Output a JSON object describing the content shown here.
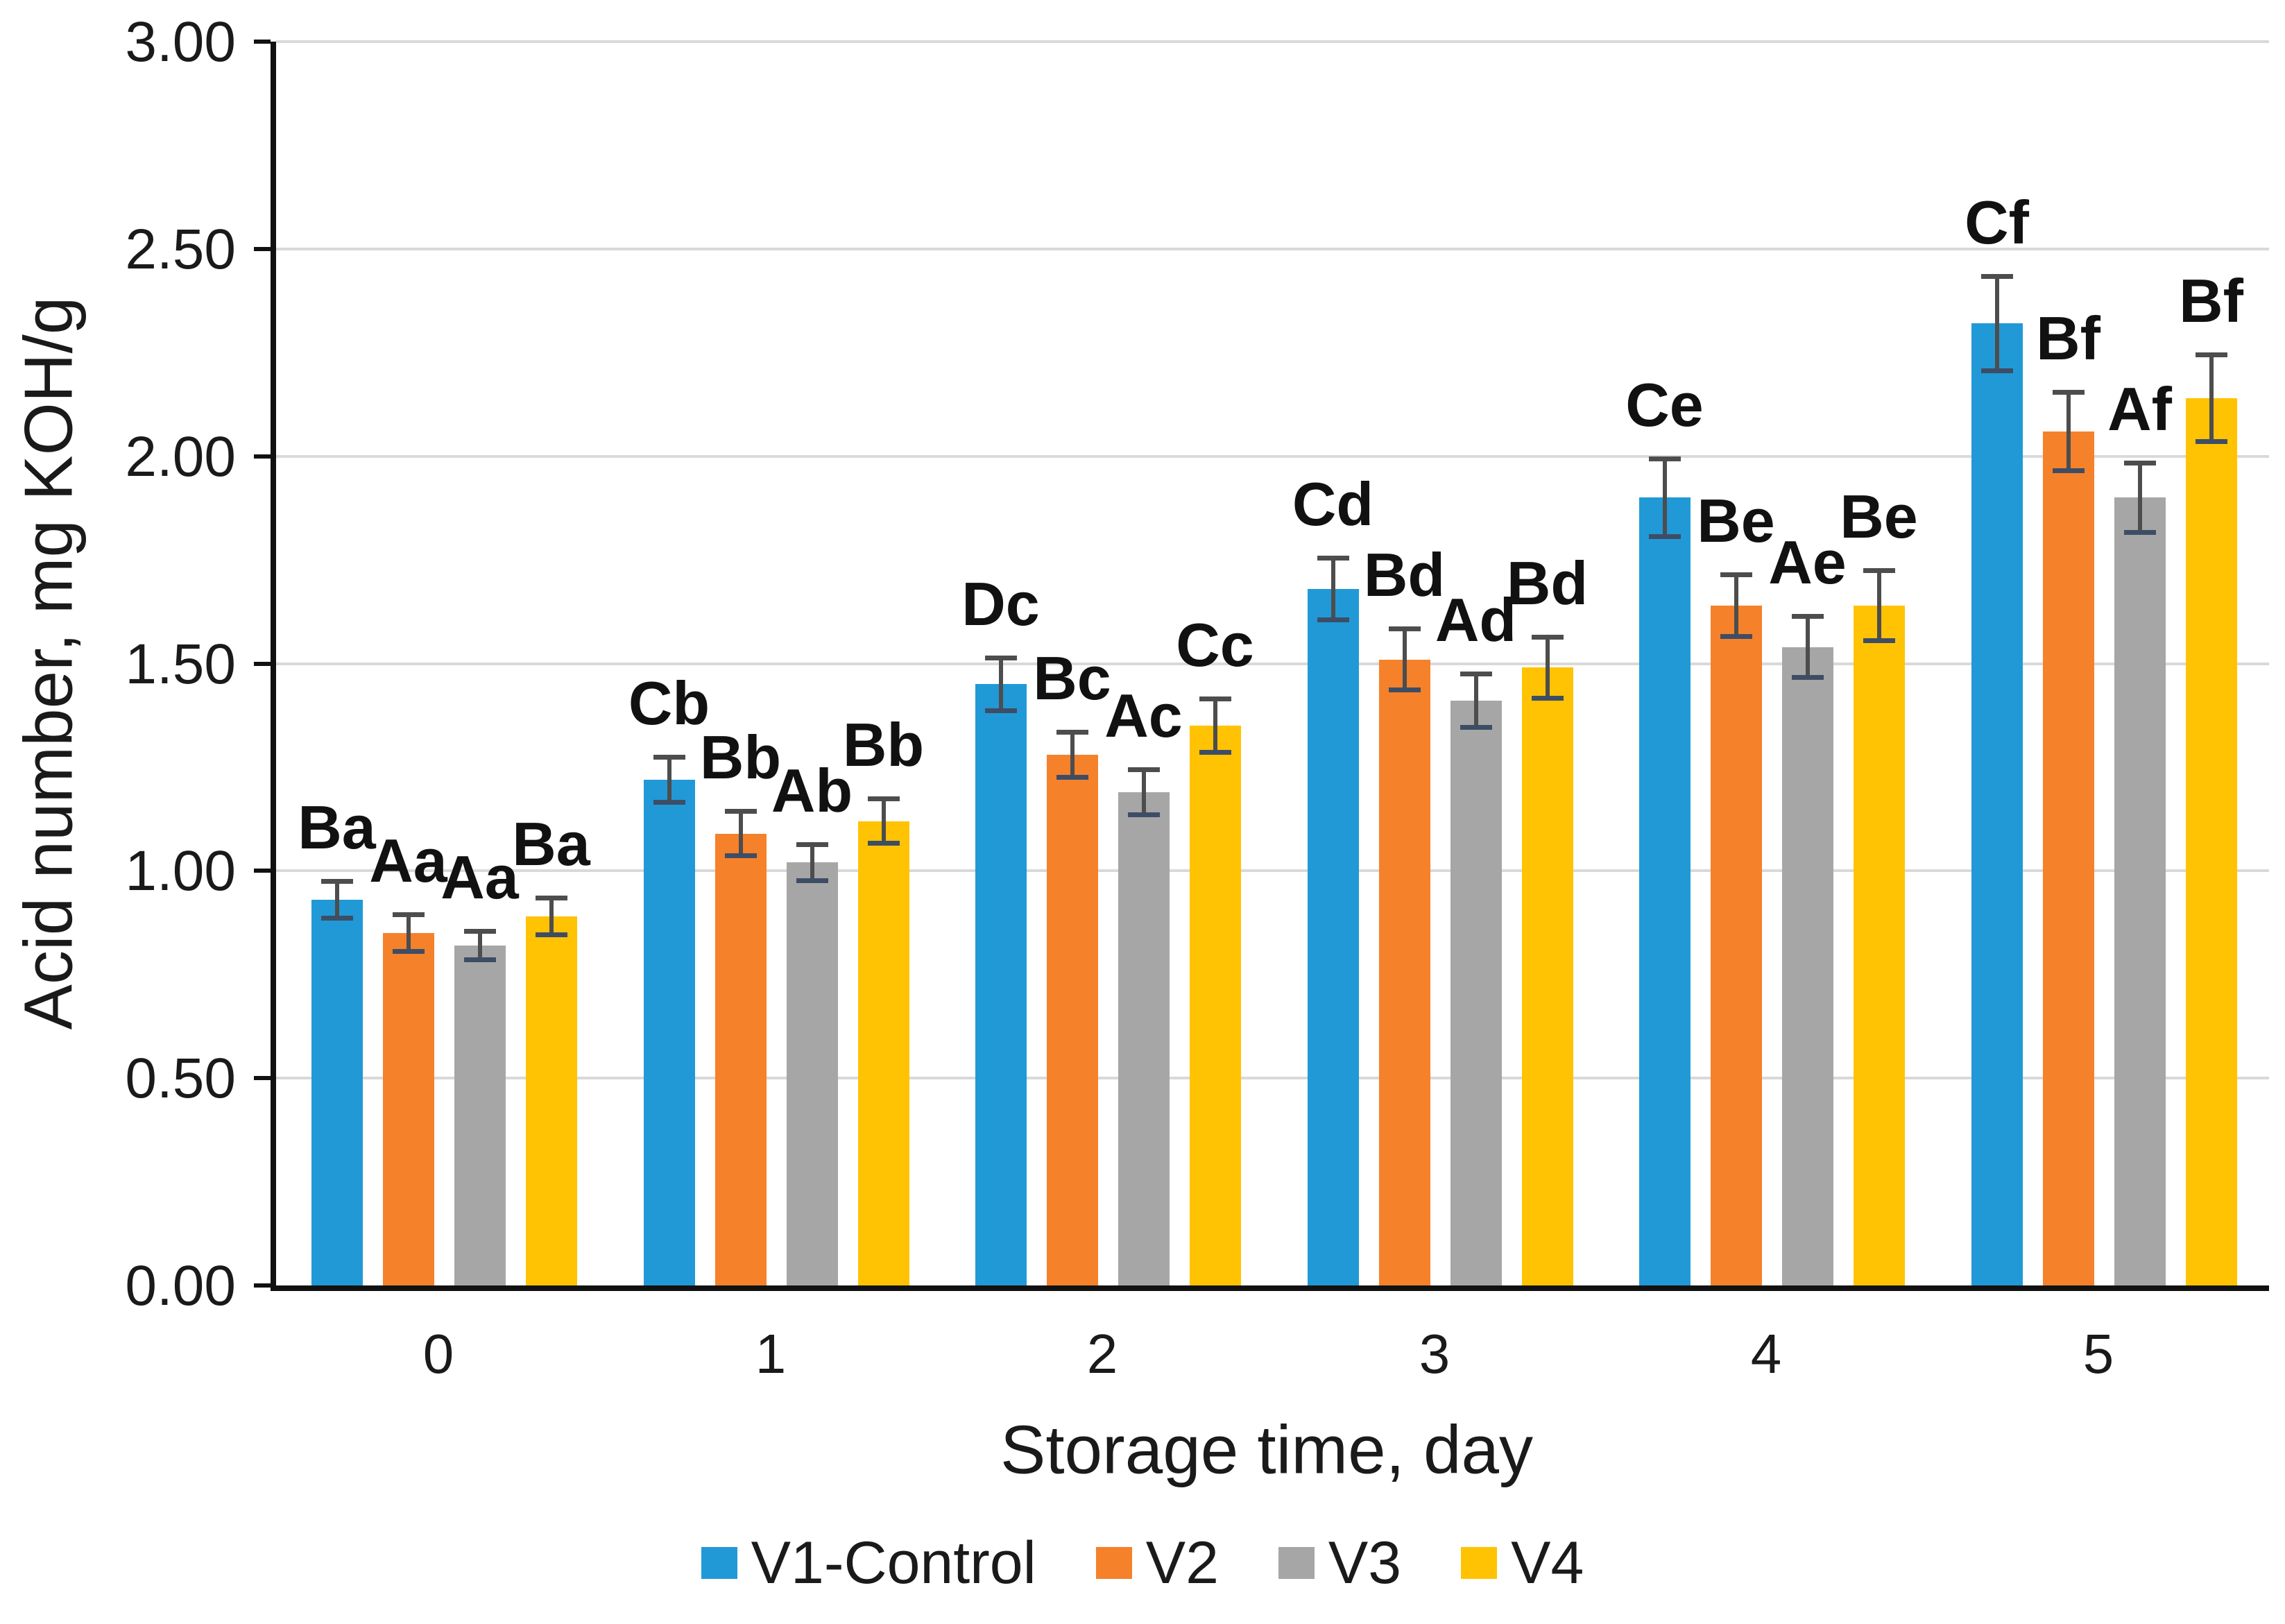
{
  "chart_data": {
    "type": "bar",
    "title": "",
    "categories": [
      "0",
      "1",
      "2",
      "3",
      "4",
      "5"
    ],
    "series": [
      {
        "name": "V1-Control",
        "color": "#2199D6",
        "values": [
          0.93,
          1.22,
          1.45,
          1.68,
          1.9,
          2.32
        ],
        "errors": [
          0.05,
          0.06,
          0.07,
          0.08,
          0.1,
          0.12
        ],
        "point_labels": [
          "Ba",
          "Cb",
          "Dc",
          "Cd",
          "Ce",
          "Cf"
        ]
      },
      {
        "name": "V2",
        "color": "#F5812A",
        "values": [
          0.85,
          1.09,
          1.28,
          1.51,
          1.64,
          2.06
        ],
        "errors": [
          0.05,
          0.06,
          0.06,
          0.08,
          0.08,
          0.1
        ],
        "point_labels": [
          "Aa",
          "Bb",
          "Bc",
          "Bd",
          "Be",
          "Bf"
        ]
      },
      {
        "name": "V3",
        "color": "#A6A6A6",
        "values": [
          0.82,
          1.02,
          1.19,
          1.41,
          1.54,
          1.9
        ],
        "errors": [
          0.04,
          0.05,
          0.06,
          0.07,
          0.08,
          0.09
        ],
        "point_labels": [
          "Aa",
          "Ab",
          "Ac",
          "Ad",
          "Ae",
          "Af"
        ]
      },
      {
        "name": "V4",
        "color": "#FFC303",
        "values": [
          0.89,
          1.12,
          1.35,
          1.49,
          1.64,
          2.14
        ],
        "errors": [
          0.05,
          0.06,
          0.07,
          0.08,
          0.09,
          0.11
        ],
        "point_labels": [
          "Ba",
          "Bb",
          "Cc",
          "Bd",
          "Be",
          "Bf"
        ]
      }
    ],
    "xlabel": "Storage time, day",
    "ylabel": "Acid number, mg KOH/g",
    "ylim": [
      0,
      3
    ],
    "ytick_step": 0.5,
    "ytick_labels": [
      "0.00",
      "0.50",
      "1.00",
      "1.50",
      "2.00",
      "2.50",
      "3.00"
    ],
    "grid": true,
    "legend_position": "bottom"
  },
  "styles": {
    "gridline_color": "#d9d9d9",
    "axis_color": "#111111",
    "error_bar_color": "#4d4d4d",
    "error_cap_bottom_color": "#3e4d66",
    "text_color": "#1a1a1a",
    "background": "#ffffff"
  }
}
